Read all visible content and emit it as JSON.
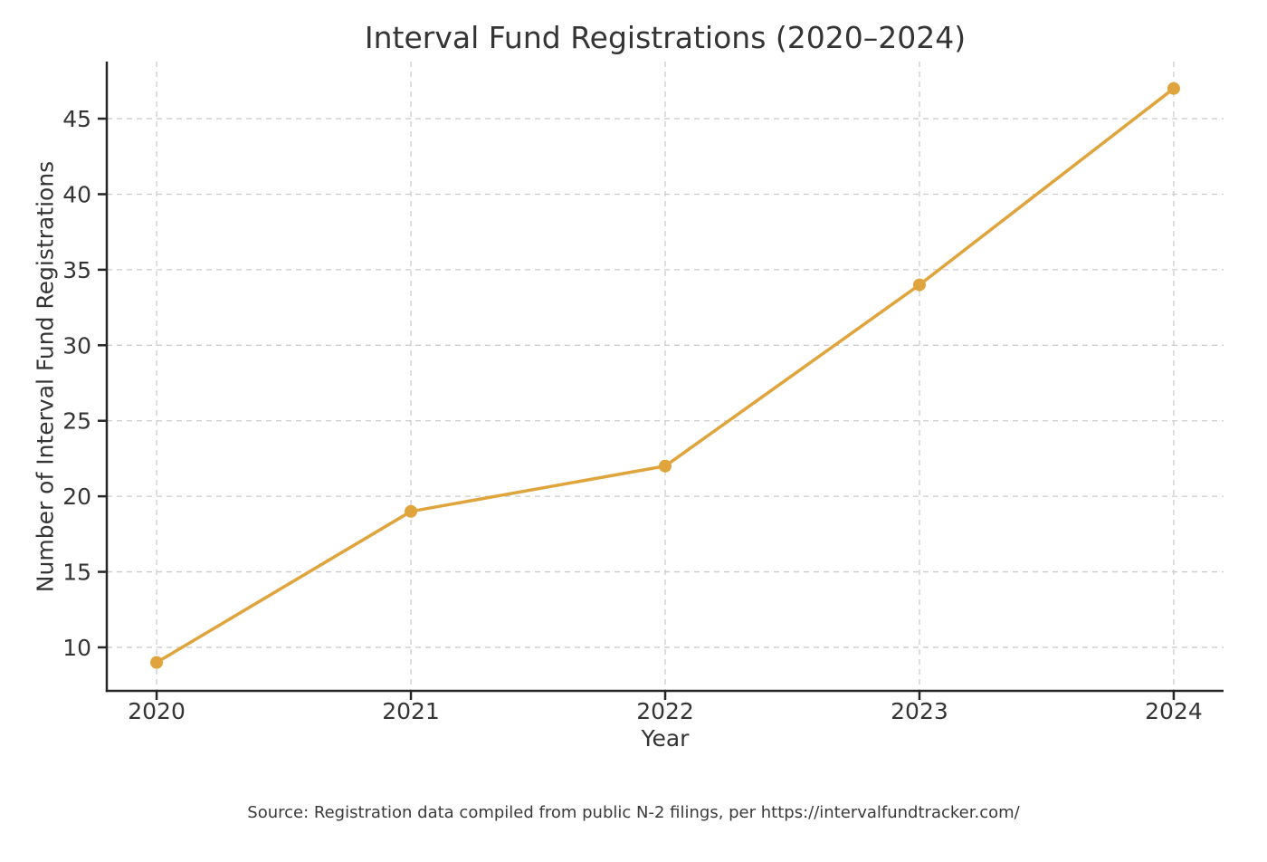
{
  "chart_data": {
    "type": "line",
    "title": "Interval Fund Registrations (2020–2024)",
    "xlabel": "Year",
    "ylabel": "Number of Interval Fund Registrations",
    "x": [
      2020,
      2021,
      2022,
      2023,
      2024
    ],
    "series": [
      {
        "name": "Interval Fund Registrations",
        "values": [
          9,
          19,
          22,
          34,
          47
        ],
        "color": "#E0A43C",
        "marker": "circle"
      }
    ],
    "yticks": [
      10,
      15,
      20,
      25,
      30,
      35,
      40,
      45
    ],
    "xlim": [
      2019.804,
      2024.196
    ],
    "ylim": [
      7.12,
      48.78
    ],
    "grid": true,
    "grid_style": "dashed",
    "legend": "none"
  },
  "footer": {
    "source_text": "Source: Registration data compiled from public N-2 filings, per https://intervalfundtracker.com/"
  }
}
